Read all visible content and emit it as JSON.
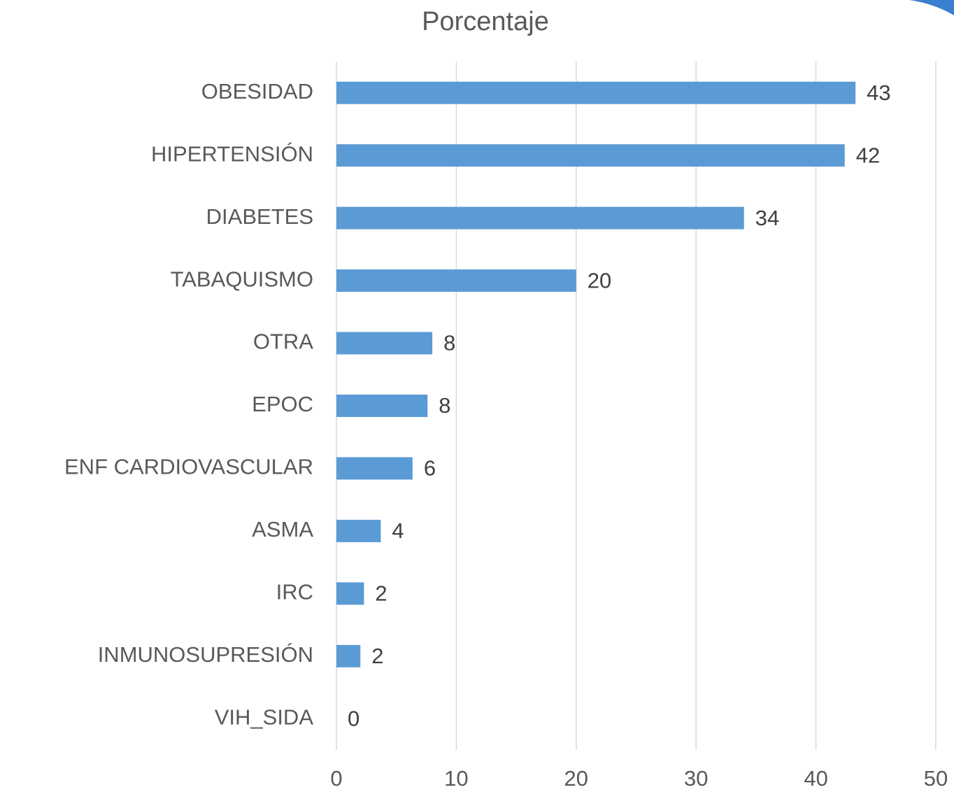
{
  "chart_data": {
    "type": "bar",
    "orientation": "horizontal",
    "title": "Porcentaje",
    "categories": [
      "OBESIDAD",
      "HIPERTENSIÓN",
      "DIABETES",
      "TABAQUISMO",
      "OTRA",
      "EPOC",
      "ENF CARDIOVASCULAR",
      "ASMA",
      "IRC",
      "INMUNOSUPRESIÓN",
      "VIH_SIDA"
    ],
    "values": [
      43.3,
      42.4,
      34.0,
      20.0,
      8.0,
      7.6,
      6.35,
      3.7,
      2.3,
      2.0,
      0
    ],
    "value_labels": [
      "43",
      "42",
      "34",
      "20",
      "8",
      "8",
      "6",
      "4",
      "2",
      "2",
      "0"
    ],
    "color": "#5b9bd5",
    "xlim": [
      0,
      50
    ],
    "xticks": [
      0,
      10,
      20,
      30,
      40,
      50
    ],
    "grid": true
  }
}
